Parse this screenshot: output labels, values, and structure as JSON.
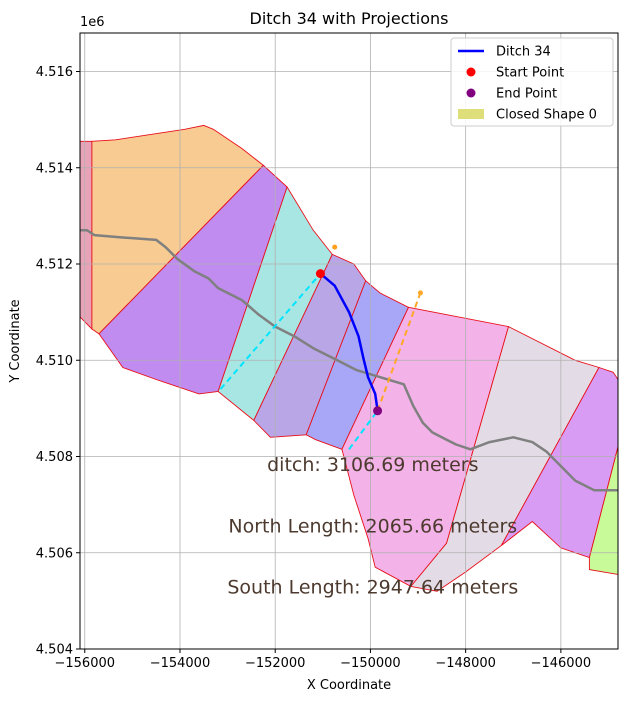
{
  "chart_data": {
    "type": "map-plot",
    "title": "Ditch 34 with Projections",
    "xlabel": "X Coordinate",
    "ylabel": "Y Coordinate",
    "y_offset_label": "1e6",
    "xlim": [
      -156100,
      -144800
    ],
    "ylim": [
      4504000,
      4516800
    ],
    "x_ticks": [
      {
        "value": -156000,
        "label": "−156000"
      },
      {
        "value": -154000,
        "label": "−154000"
      },
      {
        "value": -152000,
        "label": "−152000"
      },
      {
        "value": -150000,
        "label": "−150000"
      },
      {
        "value": -148000,
        "label": "−148000"
      },
      {
        "value": -146000,
        "label": "−146000"
      }
    ],
    "y_ticks": [
      {
        "value": 4504000,
        "label": "4.504"
      },
      {
        "value": 4506000,
        "label": "4.506"
      },
      {
        "value": 4508000,
        "label": "4.508"
      },
      {
        "value": 4510000,
        "label": "4.510"
      },
      {
        "value": 4512000,
        "label": "4.512"
      },
      {
        "value": 4514000,
        "label": "4.514"
      },
      {
        "value": 4516000,
        "label": "4.516"
      }
    ],
    "grid": true,
    "legend_position": "top-right",
    "legend": [
      {
        "label": "Ditch 34",
        "kind": "line",
        "color": "#0000ff"
      },
      {
        "label": "Start Point",
        "kind": "marker",
        "color": "#ff0000"
      },
      {
        "label": "End Point",
        "kind": "marker",
        "color": "#800080"
      },
      {
        "label": "Closed Shape 0",
        "kind": "patch",
        "color": "#dede7a"
      }
    ],
    "polygons": [
      {
        "fill": "#e8a3b8",
        "points": [
          [
            -156100,
            4514550
          ],
          [
            -155850,
            4514550
          ],
          [
            -155850,
            4510650
          ],
          [
            -156100,
            4510900
          ]
        ]
      },
      {
        "fill": "#f7cb91",
        "points": [
          [
            -155850,
            4514550
          ],
          [
            -155350,
            4514580
          ],
          [
            -153900,
            4514800
          ],
          [
            -153500,
            4514880
          ],
          [
            -153300,
            4514800
          ],
          [
            -152700,
            4514400
          ],
          [
            -152250,
            4514050
          ],
          [
            -155700,
            4510550
          ],
          [
            -155850,
            4510650
          ]
        ]
      },
      {
        "fill": "#c08cf0",
        "points": [
          [
            -155700,
            4510550
          ],
          [
            -152250,
            4514050
          ],
          [
            -151750,
            4513600
          ],
          [
            -153200,
            4509350
          ],
          [
            -153600,
            4509300
          ],
          [
            -154500,
            4509600
          ],
          [
            -155200,
            4509850
          ]
        ]
      },
      {
        "fill": "#a8e6e4",
        "points": [
          [
            -151750,
            4513600
          ],
          [
            -151200,
            4512700
          ],
          [
            -150800,
            4512200
          ],
          [
            -152450,
            4508750
          ],
          [
            -153200,
            4509350
          ]
        ]
      },
      {
        "fill": "#b8a6e6",
        "points": [
          [
            -150800,
            4512200
          ],
          [
            -150350,
            4512000
          ],
          [
            -150100,
            4511650
          ],
          [
            -151350,
            4508450
          ],
          [
            -152100,
            4508400
          ],
          [
            -152450,
            4508750
          ]
        ]
      },
      {
        "fill": "#a8a7f7",
        "points": [
          [
            -150100,
            4511650
          ],
          [
            -149800,
            4511400
          ],
          [
            -149200,
            4511100
          ],
          [
            -150600,
            4508150
          ],
          [
            -151150,
            4508350
          ],
          [
            -151350,
            4508450
          ]
        ]
      },
      {
        "fill": "#f3b3e8",
        "points": [
          [
            -149200,
            4511100
          ],
          [
            -147100,
            4510700
          ],
          [
            -148400,
            4506200
          ],
          [
            -149150,
            4505300
          ],
          [
            -149900,
            4505700
          ],
          [
            -150050,
            4506300
          ],
          [
            -150350,
            4507200
          ],
          [
            -150600,
            4508150
          ]
        ]
      },
      {
        "fill": "#e3dce6",
        "points": [
          [
            -147100,
            4510700
          ],
          [
            -145700,
            4510000
          ],
          [
            -145200,
            4509850
          ],
          [
            -147250,
            4506150
          ],
          [
            -148000,
            4505600
          ],
          [
            -148600,
            4505200
          ],
          [
            -149150,
            4505300
          ],
          [
            -148400,
            4506200
          ]
        ]
      },
      {
        "fill": "#d99cf5",
        "points": [
          [
            -145200,
            4509850
          ],
          [
            -144900,
            4509750
          ],
          [
            -144800,
            4509600
          ],
          [
            -144800,
            4508200
          ],
          [
            -145400,
            4505900
          ],
          [
            -146000,
            4506100
          ],
          [
            -146600,
            4506650
          ],
          [
            -147250,
            4506150
          ]
        ]
      },
      {
        "fill": "#c8fa99",
        "points": [
          [
            -144800,
            4508200
          ],
          [
            -144800,
            4505550
          ],
          [
            -145400,
            4505650
          ],
          [
            -145400,
            4505900
          ]
        ]
      }
    ],
    "river": [
      [
        -156100,
        4512700
      ],
      [
        -155950,
        4512700
      ],
      [
        -155800,
        4512600
      ],
      [
        -155200,
        4512550
      ],
      [
        -154500,
        4512500
      ],
      [
        -154300,
        4512350
      ],
      [
        -154050,
        4512100
      ],
      [
        -153700,
        4511850
      ],
      [
        -153400,
        4511700
      ],
      [
        -153200,
        4511500
      ],
      [
        -152700,
        4511250
      ],
      [
        -152350,
        4510950
      ],
      [
        -152000,
        4510700
      ],
      [
        -151600,
        4510500
      ],
      [
        -151200,
        4510250
      ],
      [
        -150800,
        4510050
      ],
      [
        -150300,
        4509800
      ],
      [
        -149800,
        4509650
      ],
      [
        -149300,
        4509500
      ],
      [
        -149100,
        4509050
      ],
      [
        -148900,
        4508700
      ],
      [
        -148700,
        4508500
      ],
      [
        -148400,
        4508350
      ],
      [
        -148200,
        4508250
      ],
      [
        -147900,
        4508150
      ],
      [
        -147500,
        4508300
      ],
      [
        -147000,
        4508400
      ],
      [
        -146600,
        4508300
      ],
      [
        -146300,
        4508100
      ],
      [
        -146000,
        4507800
      ],
      [
        -145700,
        4507500
      ],
      [
        -145300,
        4507300
      ],
      [
        -144800,
        4507300
      ]
    ],
    "ditch": [
      [
        -151050,
        4511800
      ],
      [
        -150750,
        4511550
      ],
      [
        -150450,
        4511000
      ],
      [
        -150250,
        4510500
      ],
      [
        -150150,
        4510050
      ],
      [
        -150050,
        4509650
      ],
      [
        -149900,
        4509300
      ],
      [
        -149850,
        4508950
      ]
    ],
    "start_point": [
      -151050,
      4511800
    ],
    "end_point": [
      -149850,
      4508950
    ],
    "projection_start": {
      "color": "#00e5ff",
      "points": [
        [
          -153150,
          4509400
        ],
        [
          -151050,
          4511800
        ]
      ]
    },
    "projection_start_tip": {
      "color": "#ff9f1c",
      "points": [
        [
          -150750,
          4512350
        ]
      ]
    },
    "projection_end": {
      "color": "#00e5ff",
      "points": [
        [
          -150450,
          4508150
        ],
        [
          -149850,
          4508950
        ]
      ]
    },
    "projection_north": {
      "color": "#ffa726",
      "points": [
        [
          -149850,
          4508950
        ],
        [
          -148950,
          4511400
        ]
      ]
    },
    "annotations": [
      {
        "text": "ditch: 3106.69 meters",
        "x": -149950,
        "y": 4507700
      },
      {
        "text": "North Length: 2065.66 meters",
        "x": -149950,
        "y": 4506420
      },
      {
        "text": "South Length: 2947.64 meters",
        "x": -149950,
        "y": 4505150
      }
    ]
  }
}
